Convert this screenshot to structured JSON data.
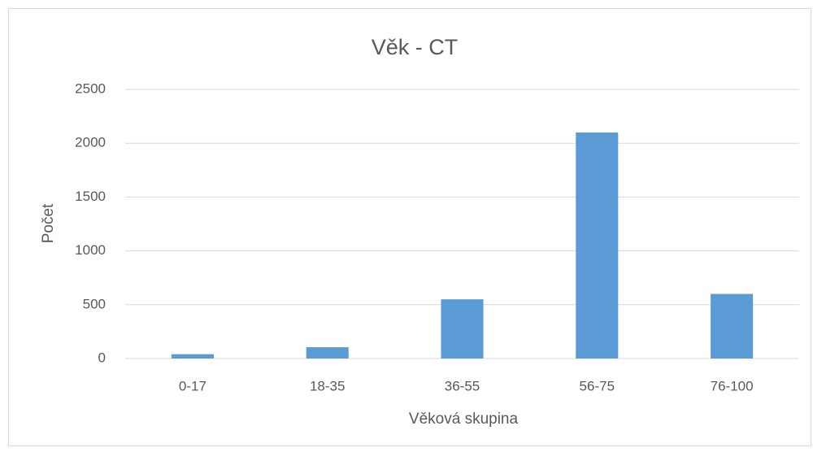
{
  "chart_data": {
    "type": "bar",
    "title": "Věk - CT",
    "xlabel": "Věková skupina",
    "ylabel": "Počet",
    "categories": [
      "0-17",
      "18-35",
      "36-55",
      "56-75",
      "76-100"
    ],
    "values": [
      40,
      105,
      550,
      2100,
      600
    ],
    "color": "#5b9bd5",
    "ylim": [
      0,
      2500
    ],
    "yticks": [
      0,
      500,
      1000,
      1500,
      2000,
      2500
    ],
    "grid": true
  }
}
